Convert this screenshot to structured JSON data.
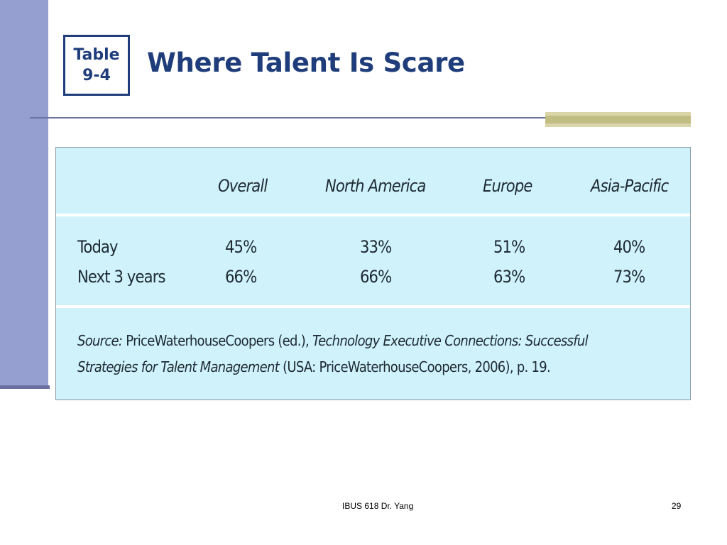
{
  "slide": {
    "badge_line1": "Table",
    "badge_line2": "9-4",
    "title": "Where Talent Is Scare"
  },
  "table": {
    "columns": [
      "Overall",
      "North America",
      "Europe",
      "Asia-Pacific"
    ],
    "rows": [
      {
        "label": "Today",
        "values": [
          "45%",
          "33%",
          "51%",
          "40%"
        ]
      },
      {
        "label": "Next 3 years",
        "values": [
          "66%",
          "66%",
          "63%",
          "73%"
        ]
      }
    ],
    "source": {
      "prefix": "Source:",
      "part1": "PriceWaterhouseCoopers (ed.),",
      "italic_title": "Technology Executive Connections: Successful Strategies for Talent Management",
      "part2": "(USA: PriceWaterhouseCoopers, 2006), p. 19."
    }
  },
  "footer": {
    "course": "IBUS 618 Dr. Yang",
    "page_number": "29"
  },
  "colors": {
    "title": "#1f3d7a",
    "left_band": "#96a0d0",
    "table_bg": "#cff2fb",
    "accent_bar": "#c2bd83"
  }
}
